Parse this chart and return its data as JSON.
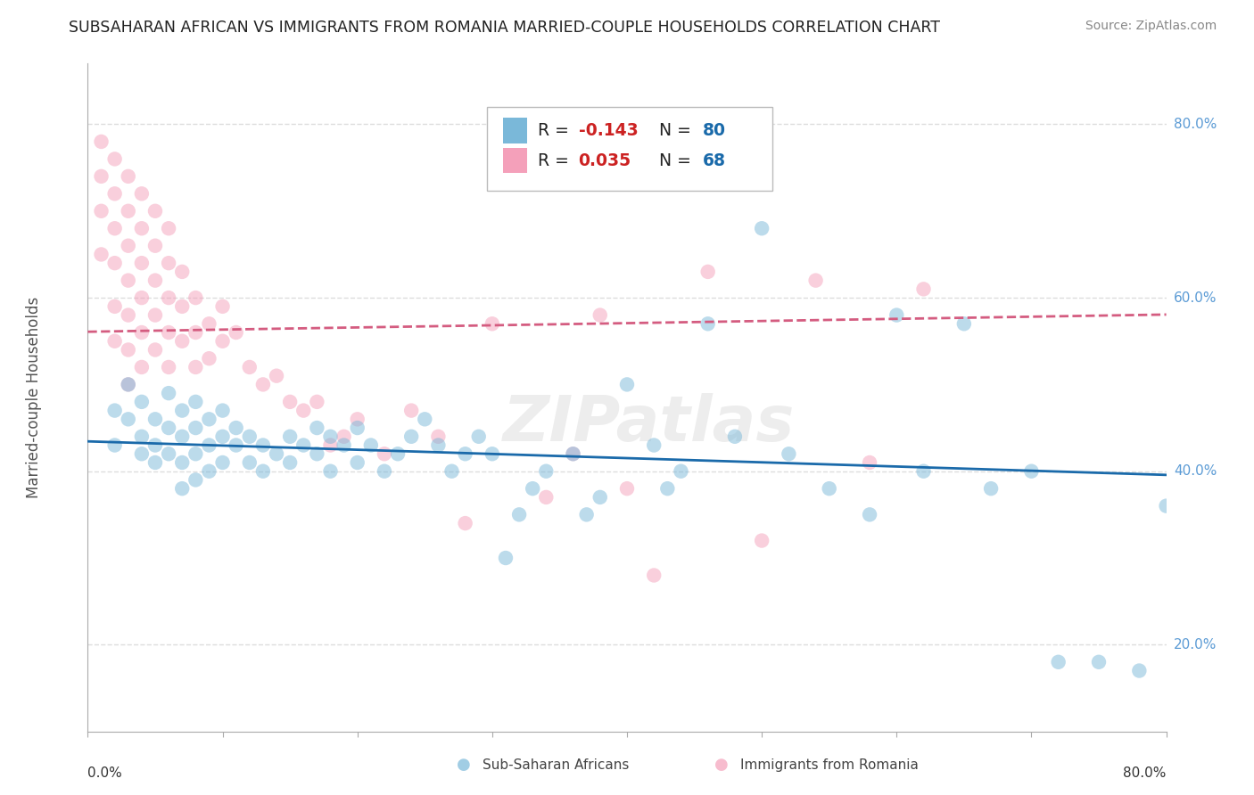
{
  "title": "SUBSAHARAN AFRICAN VS IMMIGRANTS FROM ROMANIA MARRIED-COUPLE HOUSEHOLDS CORRELATION CHART",
  "source": "Source: ZipAtlas.com",
  "ylabel": "Married-couple Households",
  "xmin": 0.0,
  "xmax": 0.8,
  "ymin": 0.1,
  "ymax": 0.87,
  "yticks": [
    0.2,
    0.4,
    0.6,
    0.8
  ],
  "ytick_labels": [
    "20.0%",
    "40.0%",
    "60.0%",
    "80.0%"
  ],
  "xtick_positions": [
    0.0,
    0.1,
    0.2,
    0.3,
    0.4,
    0.5,
    0.6,
    0.7,
    0.8
  ],
  "gridline_color": "#dddddd",
  "background_color": "#ffffff",
  "blue_color": "#7ab8d9",
  "pink_color": "#f4a0ba",
  "blue_line_color": "#1a6aaa",
  "pink_line_color": "#d45c80",
  "pink_line_style": "--",
  "R_blue": -0.143,
  "N_blue": 80,
  "R_pink": 0.035,
  "N_pink": 68,
  "legend_label_blue": "Sub-Saharan Africans",
  "legend_label_pink": "Immigrants from Romania",
  "blue_scatter_x": [
    0.02,
    0.02,
    0.03,
    0.03,
    0.04,
    0.04,
    0.04,
    0.05,
    0.05,
    0.05,
    0.06,
    0.06,
    0.06,
    0.07,
    0.07,
    0.07,
    0.07,
    0.08,
    0.08,
    0.08,
    0.08,
    0.09,
    0.09,
    0.09,
    0.1,
    0.1,
    0.1,
    0.11,
    0.11,
    0.12,
    0.12,
    0.13,
    0.13,
    0.14,
    0.15,
    0.15,
    0.16,
    0.17,
    0.17,
    0.18,
    0.18,
    0.19,
    0.2,
    0.2,
    0.21,
    0.22,
    0.23,
    0.24,
    0.25,
    0.26,
    0.27,
    0.28,
    0.29,
    0.3,
    0.31,
    0.32,
    0.33,
    0.34,
    0.36,
    0.37,
    0.38,
    0.4,
    0.42,
    0.43,
    0.44,
    0.46,
    0.48,
    0.5,
    0.52,
    0.55,
    0.58,
    0.6,
    0.62,
    0.65,
    0.67,
    0.7,
    0.72,
    0.75,
    0.78,
    0.8
  ],
  "blue_scatter_y": [
    0.47,
    0.43,
    0.5,
    0.46,
    0.48,
    0.44,
    0.42,
    0.46,
    0.43,
    0.41,
    0.49,
    0.45,
    0.42,
    0.47,
    0.44,
    0.41,
    0.38,
    0.48,
    0.45,
    0.42,
    0.39,
    0.46,
    0.43,
    0.4,
    0.47,
    0.44,
    0.41,
    0.45,
    0.43,
    0.44,
    0.41,
    0.43,
    0.4,
    0.42,
    0.44,
    0.41,
    0.43,
    0.45,
    0.42,
    0.44,
    0.4,
    0.43,
    0.45,
    0.41,
    0.43,
    0.4,
    0.42,
    0.44,
    0.46,
    0.43,
    0.4,
    0.42,
    0.44,
    0.42,
    0.3,
    0.35,
    0.38,
    0.4,
    0.42,
    0.35,
    0.37,
    0.5,
    0.43,
    0.38,
    0.4,
    0.57,
    0.44,
    0.68,
    0.42,
    0.38,
    0.35,
    0.58,
    0.4,
    0.57,
    0.38,
    0.4,
    0.18,
    0.18,
    0.17,
    0.36
  ],
  "pink_scatter_x": [
    0.01,
    0.01,
    0.01,
    0.01,
    0.02,
    0.02,
    0.02,
    0.02,
    0.02,
    0.02,
    0.03,
    0.03,
    0.03,
    0.03,
    0.03,
    0.03,
    0.03,
    0.04,
    0.04,
    0.04,
    0.04,
    0.04,
    0.04,
    0.05,
    0.05,
    0.05,
    0.05,
    0.05,
    0.06,
    0.06,
    0.06,
    0.06,
    0.06,
    0.07,
    0.07,
    0.07,
    0.08,
    0.08,
    0.08,
    0.09,
    0.09,
    0.1,
    0.1,
    0.11,
    0.12,
    0.13,
    0.14,
    0.15,
    0.16,
    0.17,
    0.18,
    0.19,
    0.2,
    0.22,
    0.24,
    0.26,
    0.28,
    0.3,
    0.34,
    0.36,
    0.38,
    0.4,
    0.42,
    0.46,
    0.5,
    0.54,
    0.58,
    0.62
  ],
  "pink_scatter_y": [
    0.78,
    0.74,
    0.7,
    0.65,
    0.76,
    0.72,
    0.68,
    0.64,
    0.59,
    0.55,
    0.74,
    0.7,
    0.66,
    0.62,
    0.58,
    0.54,
    0.5,
    0.72,
    0.68,
    0.64,
    0.6,
    0.56,
    0.52,
    0.7,
    0.66,
    0.62,
    0.58,
    0.54,
    0.68,
    0.64,
    0.6,
    0.56,
    0.52,
    0.63,
    0.59,
    0.55,
    0.6,
    0.56,
    0.52,
    0.57,
    0.53,
    0.59,
    0.55,
    0.56,
    0.52,
    0.5,
    0.51,
    0.48,
    0.47,
    0.48,
    0.43,
    0.44,
    0.46,
    0.42,
    0.47,
    0.44,
    0.34,
    0.57,
    0.37,
    0.42,
    0.58,
    0.38,
    0.28,
    0.63,
    0.32,
    0.62,
    0.41,
    0.61
  ],
  "watermark": "ZIPatlas",
  "watermark_color": "#cccccc",
  "watermark_alpha": 0.35
}
